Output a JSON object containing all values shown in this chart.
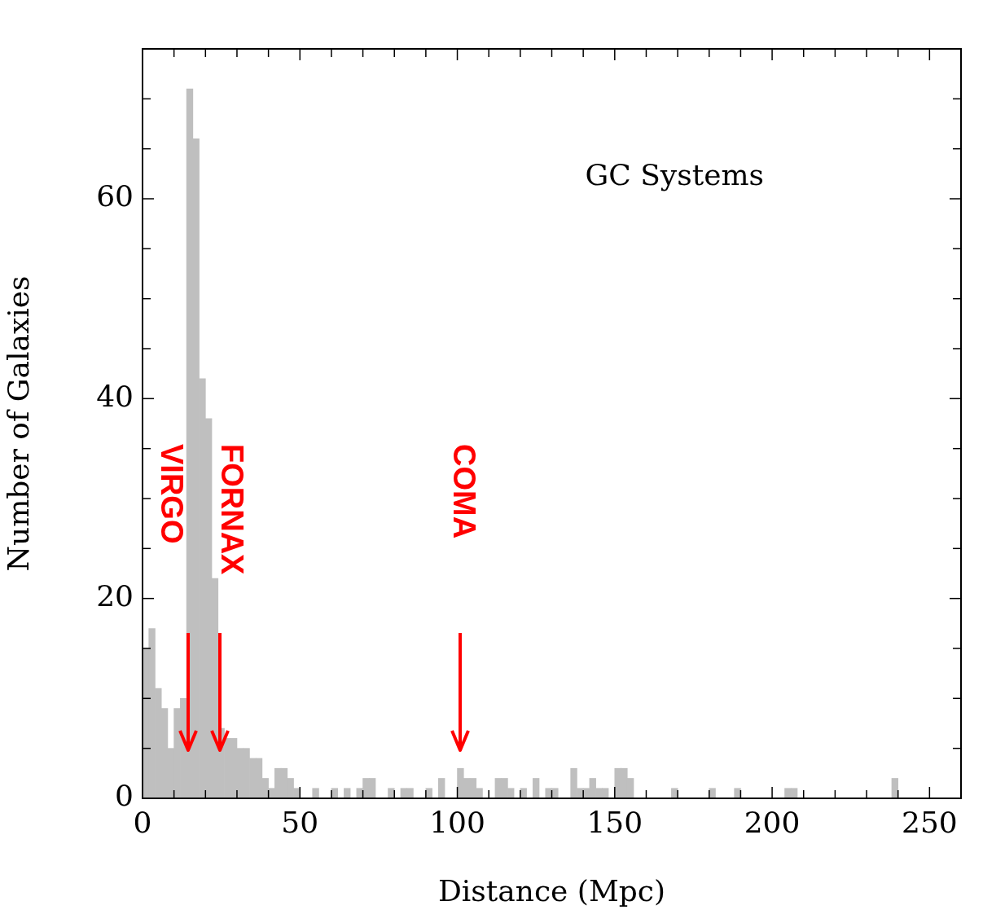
{
  "chart_data": {
    "type": "histogram",
    "title": "GC Systems",
    "xlabel": "Distance (Mpc)",
    "ylabel": "Number of Galaxies",
    "bins": [
      0,
      2,
      4,
      6,
      8,
      10,
      12,
      14,
      16,
      18,
      20,
      22,
      24,
      26,
      28,
      30,
      32,
      34,
      36,
      38,
      40,
      42,
      44,
      46,
      48,
      50,
      52,
      54,
      56,
      58,
      60,
      62,
      64,
      66,
      68,
      70,
      72,
      74,
      76,
      78,
      80,
      82,
      84,
      86,
      88,
      90,
      92,
      94,
      96,
      98,
      100,
      102,
      104,
      106,
      108,
      110,
      112,
      114,
      116,
      118,
      120,
      122,
      124,
      126,
      128,
      130,
      132,
      134,
      136,
      138,
      140,
      142,
      144,
      146,
      148,
      150,
      152,
      154,
      156,
      158,
      160,
      162,
      164,
      166,
      168,
      170,
      172,
      174,
      176,
      178,
      180,
      182,
      184,
      186,
      188,
      190,
      192,
      194,
      196,
      198,
      200,
      202,
      204,
      206,
      208,
      210,
      212,
      214,
      216,
      218,
      220,
      222,
      224,
      226,
      228,
      230,
      232,
      234,
      236,
      238,
      240
    ],
    "values": [
      15,
      17,
      11,
      9,
      5,
      9,
      10,
      71,
      66,
      42,
      38,
      22,
      7,
      6,
      6,
      5,
      5,
      4,
      4,
      2,
      1,
      3,
      3,
      2,
      1,
      0,
      0,
      1,
      0,
      0,
      1,
      0,
      1,
      0,
      1,
      2,
      2,
      0,
      0,
      1,
      0,
      1,
      1,
      0,
      0,
      1,
      0,
      2,
      0,
      0,
      3,
      2,
      2,
      1,
      0,
      0,
      2,
      2,
      1,
      0,
      1,
      0,
      2,
      0,
      1,
      1,
      0,
      0,
      3,
      1,
      1,
      2,
      1,
      1,
      0,
      3,
      3,
      2,
      0,
      0,
      0,
      0,
      0,
      0,
      1,
      0,
      0,
      0,
      0,
      0,
      1,
      0,
      0,
      0,
      1,
      0,
      0,
      0,
      0,
      0,
      0,
      0,
      1,
      1,
      0,
      0,
      0,
      0,
      0,
      0,
      0,
      0,
      0,
      0,
      0,
      0,
      0,
      0,
      0,
      2
    ],
    "color": "#bfbfbf",
    "xlim": [
      0,
      260
    ],
    "xticks": [
      0,
      {
        "value": 10,
        "label": null
      },
      {
        "value": 20,
        "label": null
      },
      {
        "value": 30,
        "label": null
      },
      {
        "value": 40,
        "label": null
      },
      50,
      {
        "value": 60,
        "label": null
      },
      {
        "value": 70,
        "label": null
      },
      {
        "value": 80,
        "label": null
      },
      {
        "value": 90,
        "label": null
      },
      100,
      {
        "value": 110,
        "label": null
      },
      {
        "value": 120,
        "label": null
      },
      {
        "value": 130,
        "label": null
      },
      {
        "value": 140,
        "label": null
      },
      150,
      {
        "value": 160,
        "label": null
      },
      {
        "value": 170,
        "label": null
      },
      {
        "value": 180,
        "label": null
      },
      {
        "value": 190,
        "label": null
      },
      200,
      {
        "value": 210,
        "label": null
      },
      {
        "value": 220,
        "label": null
      },
      {
        "value": 230,
        "label": null
      },
      {
        "value": 240,
        "label": null
      },
      250
    ],
    "ylim": [
      0,
      75
    ],
    "yticks": [
      0,
      {
        "value": 5,
        "label": null
      },
      {
        "value": 10,
        "label": null
      },
      {
        "value": 15,
        "label": null
      },
      20,
      {
        "value": 25,
        "label": null
      },
      {
        "value": 30,
        "label": null
      },
      {
        "value": 35,
        "label": null
      },
      40,
      {
        "value": 45,
        "label": null
      },
      {
        "value": 50,
        "label": null
      },
      {
        "value": 55,
        "label": null
      },
      60,
      {
        "value": 65,
        "label": null
      },
      {
        "value": 70,
        "label": null
      }
    ],
    "annotations": [
      "VIRGO",
      "FORNAX",
      "COMA"
    ],
    "legend": false
  }
}
